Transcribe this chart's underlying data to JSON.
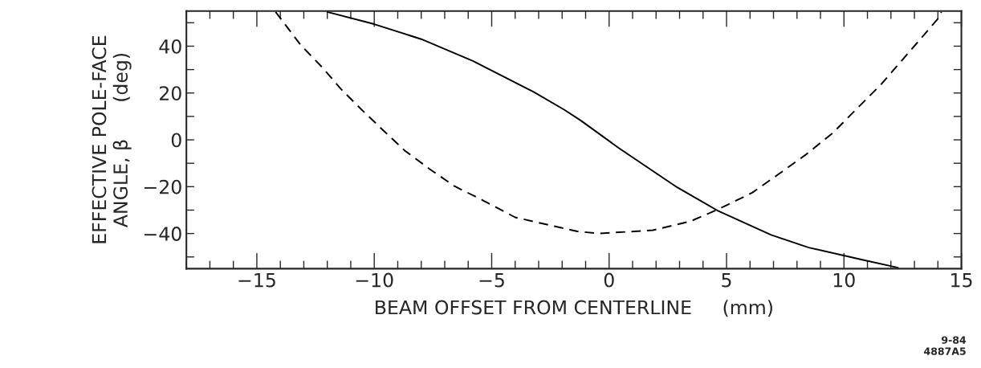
{
  "chart_data": {
    "type": "line",
    "xlabel": "BEAM OFFSET FROM CENTERLINE     (mm)",
    "ylabel": "EFFECTIVE POLE-FACE\nANGLE, β      (deg)",
    "annotations": [
      "9-84\n4887A5"
    ],
    "xlim": [
      -18,
      15
    ],
    "ylim": [
      -55,
      55
    ],
    "xticks": [
      {
        "value": -18,
        "label": null
      },
      {
        "value": -17,
        "label": null
      },
      {
        "value": -16,
        "label": null
      },
      -15,
      {
        "value": -14,
        "label": null
      },
      {
        "value": -13,
        "label": null
      },
      {
        "value": -12,
        "label": null
      },
      {
        "value": -11,
        "label": null
      },
      -10,
      {
        "value": -9,
        "label": null
      },
      {
        "value": -8,
        "label": null
      },
      {
        "value": -7,
        "label": null
      },
      {
        "value": -6,
        "label": null
      },
      -5,
      {
        "value": -4,
        "label": null
      },
      {
        "value": -3,
        "label": null
      },
      {
        "value": -2,
        "label": null
      },
      {
        "value": -1,
        "label": null
      },
      0,
      {
        "value": 1,
        "label": null
      },
      {
        "value": 2,
        "label": null
      },
      {
        "value": 3,
        "label": null
      },
      {
        "value": 4,
        "label": null
      },
      5,
      {
        "value": 6,
        "label": null
      },
      {
        "value": 7,
        "label": null
      },
      {
        "value": 8,
        "label": null
      },
      {
        "value": 9,
        "label": null
      },
      10,
      {
        "value": 11,
        "label": null
      },
      {
        "value": 12,
        "label": null
      },
      {
        "value": 13,
        "label": null
      },
      {
        "value": 14,
        "label": null
      },
      15
    ],
    "yticks": [
      {
        "value": -50,
        "label": null
      },
      -40,
      {
        "value": -30,
        "label": null
      },
      -20,
      {
        "value": -10,
        "label": null
      },
      0,
      {
        "value": 10,
        "label": null
      },
      20,
      {
        "value": 30,
        "label": null
      },
      40,
      {
        "value": 50,
        "label": null
      }
    ],
    "grid": false,
    "legend": false,
    "series": [
      {
        "color": "#000000",
        "line_style": "solid",
        "x": [
          -12.0,
          -10.0,
          -8.0,
          -5.8,
          -3.2,
          -1.9,
          -1.2,
          0.4,
          2.9,
          4.6,
          6.9,
          8.5,
          10.7,
          12.3
        ],
        "values": [
          54.6,
          49.4,
          43.0,
          33.7,
          20.4,
          12.8,
          8.2,
          -3.4,
          -20.3,
          -30.1,
          -40.6,
          -46,
          -51,
          -54.6
        ]
      },
      {
        "color": "#000000",
        "line_style": "dashed",
        "x": [
          -14.2,
          -13.15,
          -12.2,
          -11.4,
          -10.5,
          -9.6,
          -8.7,
          -7.65,
          -6.6,
          -5.36,
          -4.0,
          -1.35,
          -0.44,
          1.86,
          3.46,
          4.66,
          6.09,
          7.24,
          8.38,
          9.53,
          10.56,
          11.6,
          12.5,
          13.2,
          14.0,
          14.15
        ],
        "values": [
          54.6,
          40.7,
          30.8,
          21.5,
          12.5,
          3.9,
          -4.6,
          -12.4,
          -19.7,
          -25.9,
          -33.1,
          -39.1,
          -40.0,
          -38.6,
          -34.8,
          -29.6,
          -22.6,
          -14.5,
          -6.3,
          3.0,
          13.4,
          23.9,
          34.3,
          42.4,
          51.7,
          54.6
        ]
      }
    ]
  }
}
